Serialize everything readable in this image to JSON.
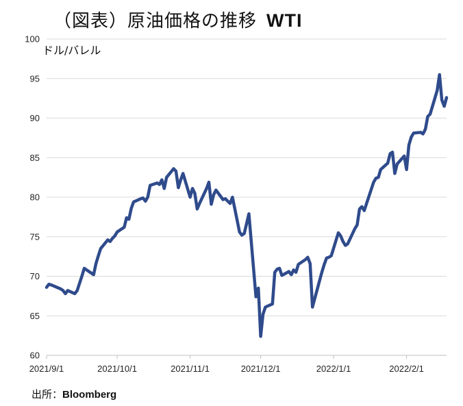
{
  "header": {
    "title": "（図表）原油価格の推移",
    "title_suffix": "WTI"
  },
  "footer": {
    "source_prefix": "出所：",
    "source_name": "Bloomberg"
  },
  "chart_data": {
    "type": "line",
    "title": "（図表）原油価格の推移 WTI",
    "ylabel": "ドル/バレル",
    "xlabel": "",
    "ylim": [
      60,
      100
    ],
    "yticks": [
      60,
      65,
      70,
      75,
      80,
      85,
      90,
      95,
      100
    ],
    "xticks": [
      "2021/9/1",
      "2021/10/1",
      "2021/11/1",
      "2021/12/1",
      "2022/1/1",
      "2022/2/1"
    ],
    "x_range": [
      "2021-09-01",
      "2022-02-18"
    ],
    "grid": "horizontal",
    "line_color": "#2f4b8c",
    "series": [
      {
        "name": "",
        "x": [
          "2021-09-01",
          "2021-09-02",
          "2021-09-03",
          "2021-09-07",
          "2021-09-08",
          "2021-09-09",
          "2021-09-10",
          "2021-09-13",
          "2021-09-14",
          "2021-09-15",
          "2021-09-16",
          "2021-09-17",
          "2021-09-20",
          "2021-09-21",
          "2021-09-22",
          "2021-09-23",
          "2021-09-24",
          "2021-09-27",
          "2021-09-28",
          "2021-09-29",
          "2021-09-30",
          "2021-10-01",
          "2021-10-04",
          "2021-10-05",
          "2021-10-06",
          "2021-10-07",
          "2021-10-08",
          "2021-10-11",
          "2021-10-12",
          "2021-10-13",
          "2021-10-14",
          "2021-10-15",
          "2021-10-18",
          "2021-10-19",
          "2021-10-20",
          "2021-10-21",
          "2021-10-22",
          "2021-10-25",
          "2021-10-26",
          "2021-10-27",
          "2021-10-28",
          "2021-10-29",
          "2021-11-01",
          "2021-11-02",
          "2021-11-03",
          "2021-11-04",
          "2021-11-05",
          "2021-11-08",
          "2021-11-09",
          "2021-11-10",
          "2021-11-11",
          "2021-11-12",
          "2021-11-15",
          "2021-11-16",
          "2021-11-17",
          "2021-11-18",
          "2021-11-19",
          "2021-11-22",
          "2021-11-23",
          "2021-11-24",
          "2021-11-26",
          "2021-11-29",
          "2021-11-30",
          "2021-12-01",
          "2021-12-02",
          "2021-12-03",
          "2021-12-06",
          "2021-12-07",
          "2021-12-08",
          "2021-12-09",
          "2021-12-10",
          "2021-12-13",
          "2021-12-14",
          "2021-12-15",
          "2021-12-16",
          "2021-12-17",
          "2021-12-20",
          "2021-12-21",
          "2021-12-22",
          "2021-12-23",
          "2021-12-27",
          "2021-12-28",
          "2021-12-29",
          "2021-12-30",
          "2021-12-31",
          "2022-01-03",
          "2022-01-04",
          "2022-01-05",
          "2022-01-06",
          "2022-01-07",
          "2022-01-10",
          "2022-01-11",
          "2022-01-12",
          "2022-01-13",
          "2022-01-14",
          "2022-01-18",
          "2022-01-19",
          "2022-01-20",
          "2022-01-21",
          "2022-01-24",
          "2022-01-25",
          "2022-01-26",
          "2022-01-27",
          "2022-01-28",
          "2022-01-31",
          "2022-02-01",
          "2022-02-02",
          "2022-02-03",
          "2022-02-04",
          "2022-02-07",
          "2022-02-08",
          "2022-02-09",
          "2022-02-10",
          "2022-02-11",
          "2022-02-14",
          "2022-02-15",
          "2022-02-16",
          "2022-02-17",
          "2022-02-18"
        ],
        "values": [
          68.6,
          69.0,
          68.9,
          68.4,
          68.2,
          67.8,
          68.2,
          67.8,
          68.2,
          69.1,
          70.0,
          71.0,
          70.4,
          70.2,
          71.6,
          72.6,
          73.5,
          74.6,
          74.4,
          74.8,
          75.1,
          75.6,
          76.2,
          77.4,
          77.2,
          78.6,
          79.4,
          79.8,
          79.9,
          79.5,
          80.0,
          81.5,
          81.8,
          81.6,
          82.2,
          81.1,
          82.5,
          83.6,
          83.3,
          81.2,
          82.2,
          83.0,
          80.0,
          81.1,
          80.5,
          78.5,
          79.2,
          81.1,
          81.9,
          79.1,
          80.3,
          80.9,
          79.7,
          79.8,
          79.5,
          79.2,
          80.0,
          75.6,
          75.2,
          75.4,
          77.9,
          67.4,
          68.5,
          62.4,
          65.2,
          66.1,
          66.5,
          70.5,
          70.9,
          71.0,
          70.1,
          70.6,
          70.2,
          70.8,
          70.5,
          71.5,
          72.1,
          72.4,
          71.6,
          66.1,
          70.5,
          71.5,
          72.3,
          72.4,
          72.6,
          75.5,
          75.1,
          74.4,
          73.9,
          74.1,
          76.0,
          76.5,
          78.5,
          78.8,
          78.3,
          81.9,
          82.4,
          82.5,
          83.5,
          84.3,
          85.5,
          85.7,
          83.0,
          84.2,
          85.2,
          83.5,
          86.6,
          87.6,
          88.1,
          88.2,
          88.0,
          88.6,
          90.2,
          90.5,
          93.5,
          95.5,
          92.3,
          91.5,
          92.6
        ]
      }
    ]
  }
}
